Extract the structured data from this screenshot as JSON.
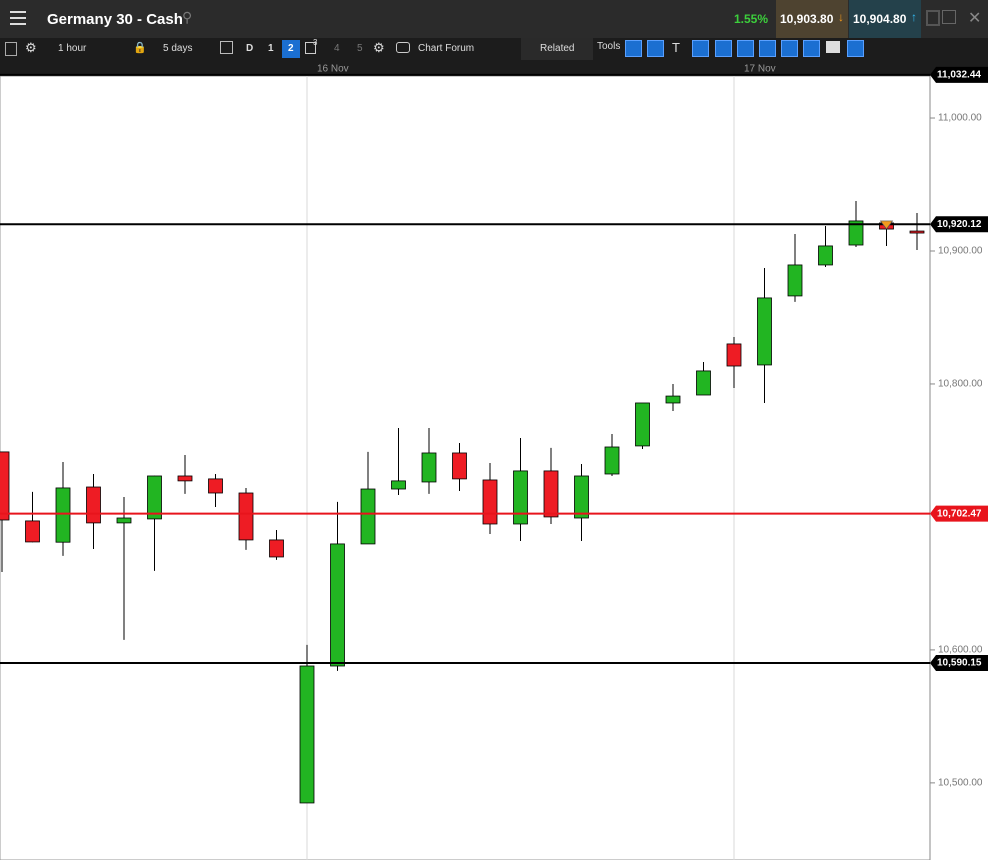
{
  "header": {
    "title": "Germany 30 - Cash",
    "change": "1.55%",
    "sell": "10,903.80",
    "buy": "10,904.80"
  },
  "toolbar": {
    "interval": "1 hour",
    "range": "5 days",
    "day": "D",
    "pages": [
      "1",
      "2",
      "4",
      "5"
    ],
    "badge": "3",
    "forum": "Chart Forum",
    "related": "Related",
    "tools": "Tools"
  },
  "chart_data": {
    "type": "candlestick",
    "categories": [
      null,
      null,
      null,
      null,
      null,
      null,
      null,
      null,
      null,
      null,
      "16 Nov",
      null,
      null,
      null,
      null,
      null,
      null,
      null,
      null,
      null,
      null,
      null,
      null,
      null,
      "17 Nov",
      null,
      null,
      null,
      null,
      null,
      null
    ],
    "open": [
      10748.9,
      10697.0,
      10681.0,
      10722.5,
      10695.5,
      10698.5,
      10730.8,
      10728.6,
      10718.0,
      10682.7,
      10484.9,
      10587.9,
      10679.7,
      10721.0,
      10726.3,
      10748.1,
      10727.8,
      10694.7,
      10734.6,
      10699.2,
      10732.3,
      10753.4,
      10785.7,
      10791.7,
      10830.1,
      10814.3,
      10866.2,
      10889.5,
      10904.5,
      10921.1,
      10915.0
    ],
    "high": [
      10748.9,
      10718.8,
      10741.3,
      10732.3,
      10715.0,
      10731.0,
      10746.6,
      10732.3,
      10721.8,
      10690.2,
      10603.8,
      10711.3,
      10748.9,
      10766.9,
      10766.9,
      10755.6,
      10740.6,
      10759.4,
      10751.9,
      10739.8,
      10762.4,
      10785.7,
      10800.0,
      10816.5,
      10835.3,
      10887.2,
      10912.8,
      10918.8,
      10937.6,
      10922.6,
      10928.6
    ],
    "low": [
      10658.6,
      10681.0,
      10670.7,
      10675.9,
      10607.5,
      10659.4,
      10717.3,
      10707.5,
      10675.2,
      10667.7,
      10484.9,
      10584.2,
      10679.7,
      10716.5,
      10717.3,
      10719.5,
      10687.2,
      10681.9,
      10694.7,
      10681.9,
      10730.8,
      10751.1,
      10779.7,
      10791.7,
      10797.0,
      10785.7,
      10861.7,
      10888.0,
      10903.0,
      10903.8,
      10900.7
    ],
    "close": [
      10697.7,
      10681.2,
      10721.8,
      10695.5,
      10699.2,
      10730.8,
      10727.1,
      10718.0,
      10682.7,
      10669.9,
      10587.9,
      10679.7,
      10721.0,
      10727.1,
      10748.1,
      10728.6,
      10694.7,
      10734.6,
      10700.0,
      10730.8,
      10752.6,
      10785.7,
      10790.9,
      10809.8,
      10813.5,
      10864.7,
      10889.5,
      10903.8,
      10922.6,
      10916.5,
      10913.5
    ],
    "up_color": "#22b522",
    "down_color": "#ee1c24",
    "ylim": [
      10442,
      11031.6
    ],
    "yticks": [
      {
        "value": 10500,
        "label": "10,500.00"
      },
      {
        "value": 10600,
        "label": "10,600.00"
      },
      {
        "value": 10800,
        "label": "10,800.00"
      },
      {
        "value": 10900,
        "label": "10,900.00"
      },
      {
        "value": 11000,
        "label": "11,000.00"
      }
    ],
    "levels": [
      {
        "value": 11032.44,
        "label": "11,032.44",
        "color": "#000000"
      },
      {
        "value": 10920.12,
        "label": "10,920.12",
        "color": "#000000"
      },
      {
        "value": 10702.47,
        "label": "10,702.47",
        "color": "#e8141c"
      },
      {
        "value": 10590.15,
        "label": "10,590.15",
        "color": "#000000"
      }
    ]
  }
}
